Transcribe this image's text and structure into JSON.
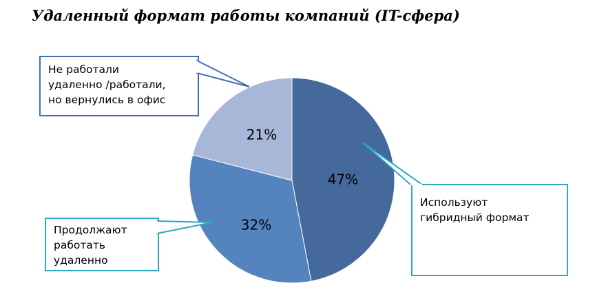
{
  "chart_data": {
    "type": "pie",
    "title": "Удаленный формат работы компаний (IT-сфера)",
    "slices": [
      {
        "label": "Используют гибридный формат",
        "label_lines": [
          "Используют",
          "гибридный формат"
        ],
        "value": 47,
        "value_label": "47%",
        "color": "#44699a"
      },
      {
        "label": "Продолжают работать удаленно",
        "label_lines": [
          "Продолжают",
          "работать",
          "удаленно"
        ],
        "value": 32,
        "value_label": "32%",
        "color": "#5583bd"
      },
      {
        "label": "Не работали удаленно /работали, но вернулись в офис",
        "label_lines": [
          "Не работали",
          "удаленно /работали,",
          "но вернулись в офис"
        ],
        "value": 21,
        "value_label": "21%",
        "color": "#a7b7d7"
      }
    ],
    "start_angle": "12 o'clock",
    "direction": "clockwise",
    "callout_border_colors": [
      "#2fa8c0",
      "#2fa8c0",
      "#3e6fb3"
    ]
  }
}
